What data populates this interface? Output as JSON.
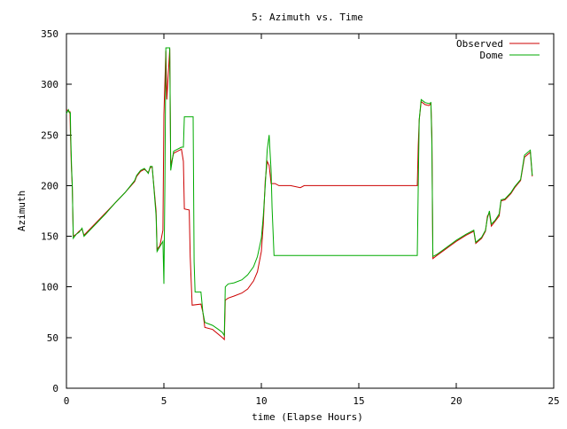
{
  "chart_data": {
    "type": "line",
    "title": "5: Azimuth vs. Time",
    "xlabel": "time (Elapse Hours)",
    "ylabel": "Azimuth",
    "xlim": [
      0,
      25
    ],
    "ylim": [
      0,
      350
    ],
    "xticks": [
      0,
      5,
      10,
      15,
      20,
      25
    ],
    "yticks": [
      0,
      50,
      100,
      150,
      200,
      250,
      300,
      350
    ],
    "grid": false,
    "legend_position": "top-right",
    "series": [
      {
        "name": "Observed",
        "color": "#cc0000",
        "points": [
          [
            0.0,
            275
          ],
          [
            0.1,
            274
          ],
          [
            0.12,
            273
          ],
          [
            0.18,
            273
          ],
          [
            0.2,
            255
          ],
          [
            0.25,
            220
          ],
          [
            0.3,
            198
          ],
          [
            0.35,
            150
          ],
          [
            0.5,
            152
          ],
          [
            0.65,
            155
          ],
          [
            0.8,
            157
          ],
          [
            0.9,
            151
          ],
          [
            1.5,
            163
          ],
          [
            2.0,
            173
          ],
          [
            2.5,
            183
          ],
          [
            3.0,
            193
          ],
          [
            3.5,
            204
          ],
          [
            3.6,
            209
          ],
          [
            3.8,
            214
          ],
          [
            4.0,
            216
          ],
          [
            4.2,
            213
          ],
          [
            4.3,
            218
          ],
          [
            4.4,
            218
          ],
          [
            4.6,
            175
          ],
          [
            4.65,
            137
          ],
          [
            4.8,
            141
          ],
          [
            4.95,
            156
          ],
          [
            5.0,
            270
          ],
          [
            5.1,
            333
          ],
          [
            5.15,
            285
          ],
          [
            5.3,
            335
          ],
          [
            5.35,
            220
          ],
          [
            5.5,
            232
          ],
          [
            5.7,
            234
          ],
          [
            5.9,
            236
          ],
          [
            6.0,
            224
          ],
          [
            6.05,
            177
          ],
          [
            6.3,
            176
          ],
          [
            6.35,
            130
          ],
          [
            6.45,
            82
          ],
          [
            6.9,
            83
          ],
          [
            7.0,
            75
          ],
          [
            7.1,
            60
          ],
          [
            7.5,
            58
          ],
          [
            8.0,
            50
          ],
          [
            8.1,
            48
          ],
          [
            8.15,
            87
          ],
          [
            8.3,
            89
          ],
          [
            8.6,
            91
          ],
          [
            9.0,
            94
          ],
          [
            9.3,
            98
          ],
          [
            9.6,
            106
          ],
          [
            9.8,
            115
          ],
          [
            10.0,
            135
          ],
          [
            10.1,
            162
          ],
          [
            10.2,
            205
          ],
          [
            10.3,
            224
          ],
          [
            10.4,
            220
          ],
          [
            10.5,
            202
          ],
          [
            10.7,
            202
          ],
          [
            10.9,
            200
          ],
          [
            11.5,
            200
          ],
          [
            12.0,
            198
          ],
          [
            12.2,
            200
          ],
          [
            13.0,
            200
          ],
          [
            15.0,
            200
          ],
          [
            17.0,
            200
          ],
          [
            18.0,
            200
          ],
          [
            18.05,
            240
          ],
          [
            18.1,
            265
          ],
          [
            18.2,
            283
          ],
          [
            18.4,
            280
          ],
          [
            18.6,
            279
          ],
          [
            18.7,
            281
          ],
          [
            18.75,
            250
          ],
          [
            18.8,
            128
          ],
          [
            19.0,
            131
          ],
          [
            19.5,
            138
          ],
          [
            20.0,
            145
          ],
          [
            20.5,
            151
          ],
          [
            20.9,
            155
          ],
          [
            21.0,
            143
          ],
          [
            21.3,
            148
          ],
          [
            21.5,
            155
          ],
          [
            21.6,
            170
          ],
          [
            21.7,
            173
          ],
          [
            21.8,
            160
          ],
          [
            22.0,
            165
          ],
          [
            22.2,
            170
          ],
          [
            22.3,
            185
          ],
          [
            22.5,
            186
          ],
          [
            22.8,
            192
          ],
          [
            23.0,
            198
          ],
          [
            23.3,
            205
          ],
          [
            23.5,
            228
          ],
          [
            23.8,
            233
          ],
          [
            23.9,
            209
          ]
        ]
      },
      {
        "name": "Dome",
        "color": "#00aa00",
        "points": [
          [
            0.0,
            271
          ],
          [
            0.1,
            275
          ],
          [
            0.15,
            272
          ],
          [
            0.2,
            272
          ],
          [
            0.22,
            250
          ],
          [
            0.27,
            215
          ],
          [
            0.3,
            200
          ],
          [
            0.35,
            148
          ],
          [
            0.5,
            152
          ],
          [
            0.65,
            154
          ],
          [
            0.8,
            158
          ],
          [
            0.9,
            150
          ],
          [
            1.5,
            162
          ],
          [
            2.0,
            172
          ],
          [
            2.5,
            183
          ],
          [
            3.0,
            193
          ],
          [
            3.5,
            205
          ],
          [
            3.6,
            210
          ],
          [
            3.8,
            215
          ],
          [
            4.0,
            217
          ],
          [
            4.2,
            212
          ],
          [
            4.3,
            219
          ],
          [
            4.4,
            219
          ],
          [
            4.6,
            170
          ],
          [
            4.65,
            135
          ],
          [
            4.8,
            140
          ],
          [
            4.95,
            145
          ],
          [
            5.0,
            103
          ],
          [
            5.05,
            200
          ],
          [
            5.1,
            336
          ],
          [
            5.3,
            336
          ],
          [
            5.35,
            215
          ],
          [
            5.5,
            234
          ],
          [
            5.9,
            238
          ],
          [
            6.0,
            238
          ],
          [
            6.05,
            268
          ],
          [
            6.5,
            268
          ],
          [
            6.55,
            125
          ],
          [
            6.6,
            95
          ],
          [
            6.9,
            95
          ],
          [
            7.0,
            75
          ],
          [
            7.1,
            65
          ],
          [
            7.5,
            62
          ],
          [
            7.8,
            58
          ],
          [
            8.0,
            55
          ],
          [
            8.1,
            52
          ],
          [
            8.15,
            100
          ],
          [
            8.3,
            103
          ],
          [
            8.6,
            104
          ],
          [
            9.0,
            107
          ],
          [
            9.3,
            112
          ],
          [
            9.6,
            120
          ],
          [
            9.8,
            130
          ],
          [
            10.0,
            148
          ],
          [
            10.1,
            170
          ],
          [
            10.2,
            200
          ],
          [
            10.3,
            235
          ],
          [
            10.4,
            250
          ],
          [
            10.45,
            232
          ],
          [
            10.5,
            215
          ],
          [
            10.55,
            178
          ],
          [
            10.6,
            155
          ],
          [
            10.65,
            131
          ],
          [
            12.0,
            131
          ],
          [
            15.0,
            131
          ],
          [
            17.0,
            131
          ],
          [
            18.0,
            131
          ],
          [
            18.05,
            200
          ],
          [
            18.1,
            265
          ],
          [
            18.2,
            285
          ],
          [
            18.4,
            282
          ],
          [
            18.6,
            281
          ],
          [
            18.7,
            282
          ],
          [
            18.75,
            240
          ],
          [
            18.8,
            130
          ],
          [
            19.0,
            132
          ],
          [
            19.5,
            139
          ],
          [
            20.0,
            146
          ],
          [
            20.5,
            152
          ],
          [
            20.9,
            156
          ],
          [
            21.0,
            144
          ],
          [
            21.3,
            149
          ],
          [
            21.5,
            156
          ],
          [
            21.6,
            168
          ],
          [
            21.7,
            175
          ],
          [
            21.8,
            162
          ],
          [
            22.0,
            166
          ],
          [
            22.2,
            172
          ],
          [
            22.3,
            186
          ],
          [
            22.5,
            187
          ],
          [
            22.8,
            193
          ],
          [
            23.0,
            199
          ],
          [
            23.3,
            206
          ],
          [
            23.5,
            230
          ],
          [
            23.8,
            235
          ],
          [
            23.9,
            210
          ]
        ]
      }
    ]
  }
}
